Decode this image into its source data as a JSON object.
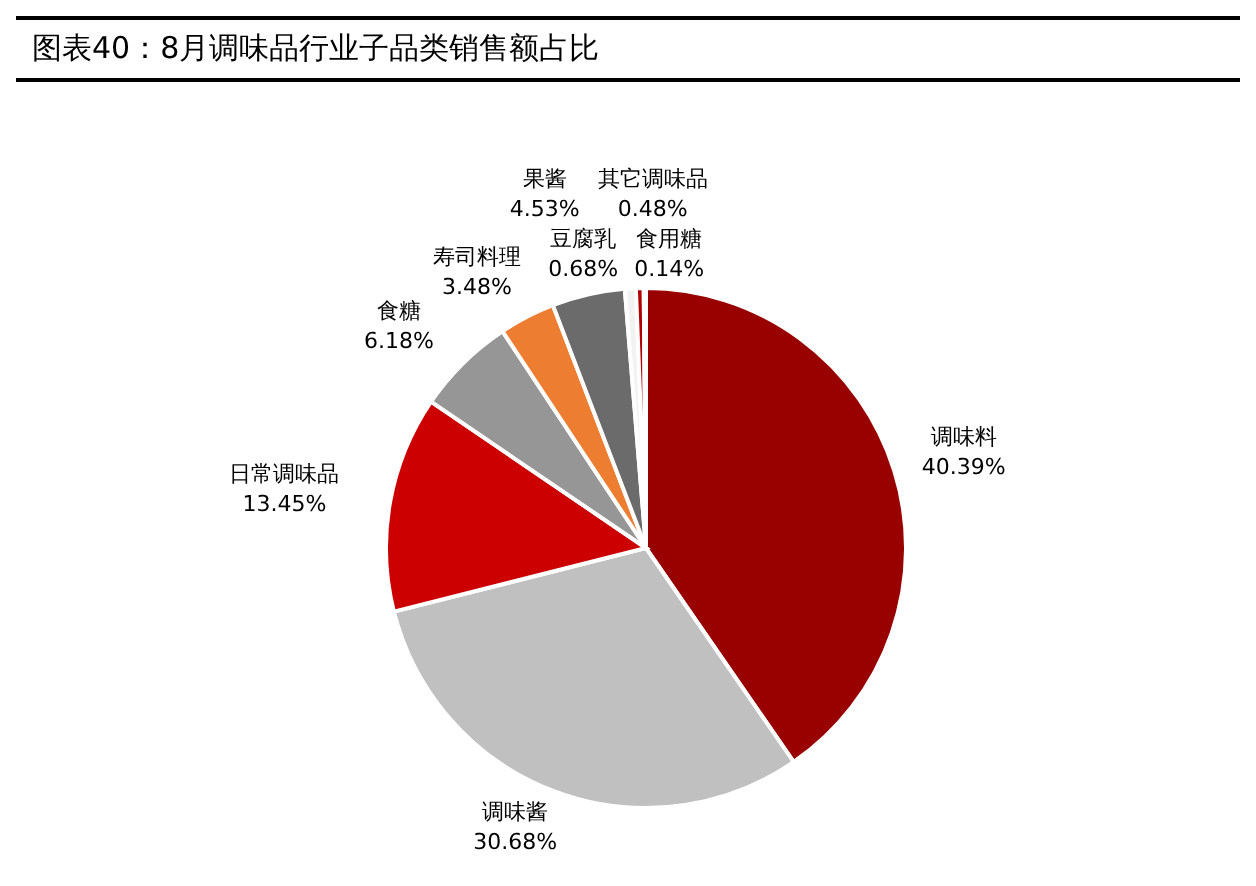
{
  "chart_data": {
    "type": "pie",
    "title": "图表40：8月调味品行业子品类销售额占比",
    "categories": [
      "调味料",
      "调味酱",
      "日常调味品",
      "食糖",
      "寿司料理",
      "果酱",
      "豆腐乳",
      "其它调味品",
      "食用糖"
    ],
    "values": [
      40.39,
      30.68,
      13.45,
      6.18,
      3.48,
      4.53,
      0.68,
      0.48,
      0.14
    ],
    "colors": [
      "#990000",
      "#c0c0c0",
      "#cc0000",
      "#969696",
      "#ed7d31",
      "#6b6b6b",
      "#f2f2f2",
      "#b00000",
      "#d9d9d9"
    ],
    "value_labels": [
      "40.39%",
      "30.68%",
      "13.45%",
      "6.18%",
      "3.48%",
      "4.53%",
      "0.68%",
      "0.48%",
      "0.14%"
    ],
    "legend": false
  }
}
